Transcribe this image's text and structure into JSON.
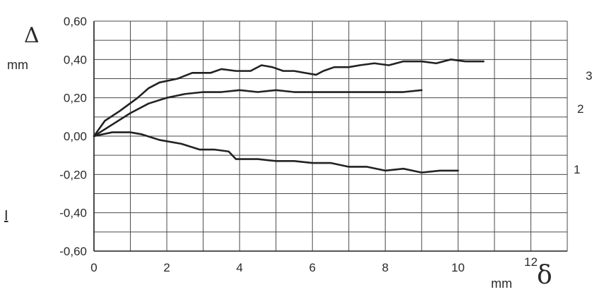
{
  "chart_data": {
    "type": "line",
    "ylabel": "Δ",
    "ylabel_unit": "mm",
    "xlabel": "δ",
    "xlabel_unit": "mm",
    "xlim": [
      0,
      13
    ],
    "ylim": [
      -0.6,
      0.6
    ],
    "x_ticks": [
      0,
      2,
      4,
      6,
      8,
      10,
      12
    ],
    "x_tick_labels": [
      "0",
      "2",
      "4",
      "6",
      "8",
      "10",
      "12"
    ],
    "y_ticks": [
      0.6,
      0.4,
      0.2,
      0.0,
      -0.2,
      -0.4,
      -0.6
    ],
    "y_tick_labels": [
      "0,60",
      "0,40",
      "0,20",
      "0,00",
      "-0,20",
      "-0,40",
      "-0,60"
    ],
    "grid": true,
    "edge_text": "I",
    "series": [
      {
        "name": "1",
        "x": [
          0,
          0.5,
          1,
          1.3,
          1.8,
          2.4,
          2.9,
          3.3,
          3.7,
          3.9,
          4.5,
          5,
          5.5,
          6,
          6.5,
          7,
          7.5,
          8,
          8.5,
          9,
          9.5,
          10
        ],
        "y": [
          0.0,
          0.02,
          0.02,
          0.01,
          -0.02,
          -0.04,
          -0.07,
          -0.07,
          -0.08,
          -0.12,
          -0.12,
          -0.13,
          -0.13,
          -0.14,
          -0.14,
          -0.16,
          -0.16,
          -0.18,
          -0.17,
          -0.19,
          -0.18,
          -0.18
        ]
      },
      {
        "name": "2",
        "x": [
          0,
          0.5,
          1,
          1.5,
          2,
          2.5,
          3,
          3.5,
          4,
          4.5,
          5,
          5.5,
          6,
          6.5,
          7,
          7.5,
          8,
          8.5,
          9
        ],
        "y": [
          0.0,
          0.06,
          0.12,
          0.17,
          0.2,
          0.22,
          0.23,
          0.23,
          0.24,
          0.23,
          0.24,
          0.23,
          0.23,
          0.23,
          0.23,
          0.23,
          0.23,
          0.23,
          0.24
        ]
      },
      {
        "name": "3",
        "x": [
          0,
          0.3,
          0.7,
          1.2,
          1.5,
          1.8,
          2.3,
          2.7,
          3.2,
          3.5,
          3.9,
          4.3,
          4.6,
          4.9,
          5.2,
          5.5,
          5.8,
          6.1,
          6.3,
          6.6,
          7.0,
          7.3,
          7.7,
          8.1,
          8.5,
          9.0,
          9.4,
          9.8,
          10.2,
          10.7
        ],
        "y": [
          0.0,
          0.08,
          0.13,
          0.2,
          0.25,
          0.28,
          0.3,
          0.33,
          0.33,
          0.35,
          0.34,
          0.34,
          0.37,
          0.36,
          0.34,
          0.34,
          0.33,
          0.32,
          0.34,
          0.36,
          0.36,
          0.37,
          0.38,
          0.37,
          0.39,
          0.39,
          0.38,
          0.4,
          0.39,
          0.39
        ]
      }
    ]
  }
}
